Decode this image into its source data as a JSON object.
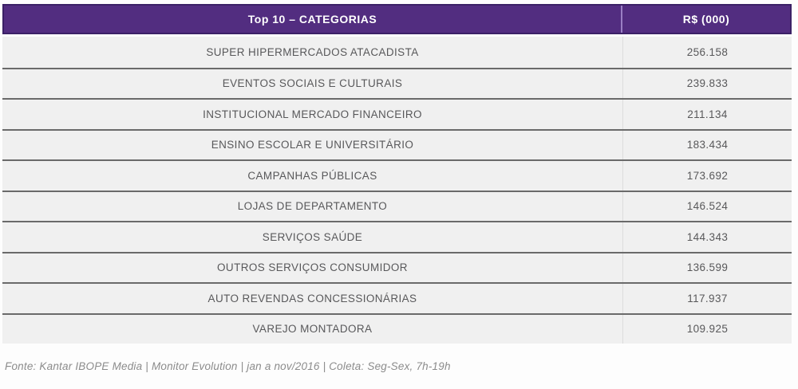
{
  "chart_data": {
    "type": "table",
    "title": "Top 10 – CATEGORIAS",
    "columns": [
      "Top 10 – CATEGORIAS",
      "R$ (000)"
    ],
    "categories": [
      "SUPER HIPERMERCADOS ATACADISTA",
      "EVENTOS SOCIAIS E CULTURAIS",
      "INSTITUCIONAL MERCADO FINANCEIRO",
      "ENSINO ESCOLAR E UNIVERSITÁRIO",
      "CAMPANHAS PÚBLICAS",
      "LOJAS DE DEPARTAMENTO",
      "SERVIÇOS SAÚDE",
      "OUTROS SERVIÇOS CONSUMIDOR",
      "AUTO REVENDAS CONCESSIONÁRIAS",
      "VAREJO MONTADORA"
    ],
    "values": [
      256158,
      239833,
      211134,
      183434,
      173692,
      146524,
      144343,
      136599,
      117937,
      109925
    ],
    "values_display": [
      "256.158",
      "239.833",
      "211.134",
      "183.434",
      "173.692",
      "146.524",
      "144.343",
      "136.599",
      "117.937",
      "109.925"
    ],
    "value_unit": "R$ (000)",
    "source": "Fonte: Kantar IBOPE Media | Monitor Evolution | jan a nov/2016 | Coleta: Seg-Sex, 7h-19h"
  },
  "colors": {
    "header_bg": "#522d80",
    "header_border": "#3b2166",
    "row_bg": "#f0f0f0",
    "separator": "#6a6a6a",
    "column_divider": "#dcdcdc",
    "header_divider": "#9a7fc4",
    "text": "#58585a",
    "header_text": "#ffffff",
    "source_text": "#8c8c8c"
  }
}
